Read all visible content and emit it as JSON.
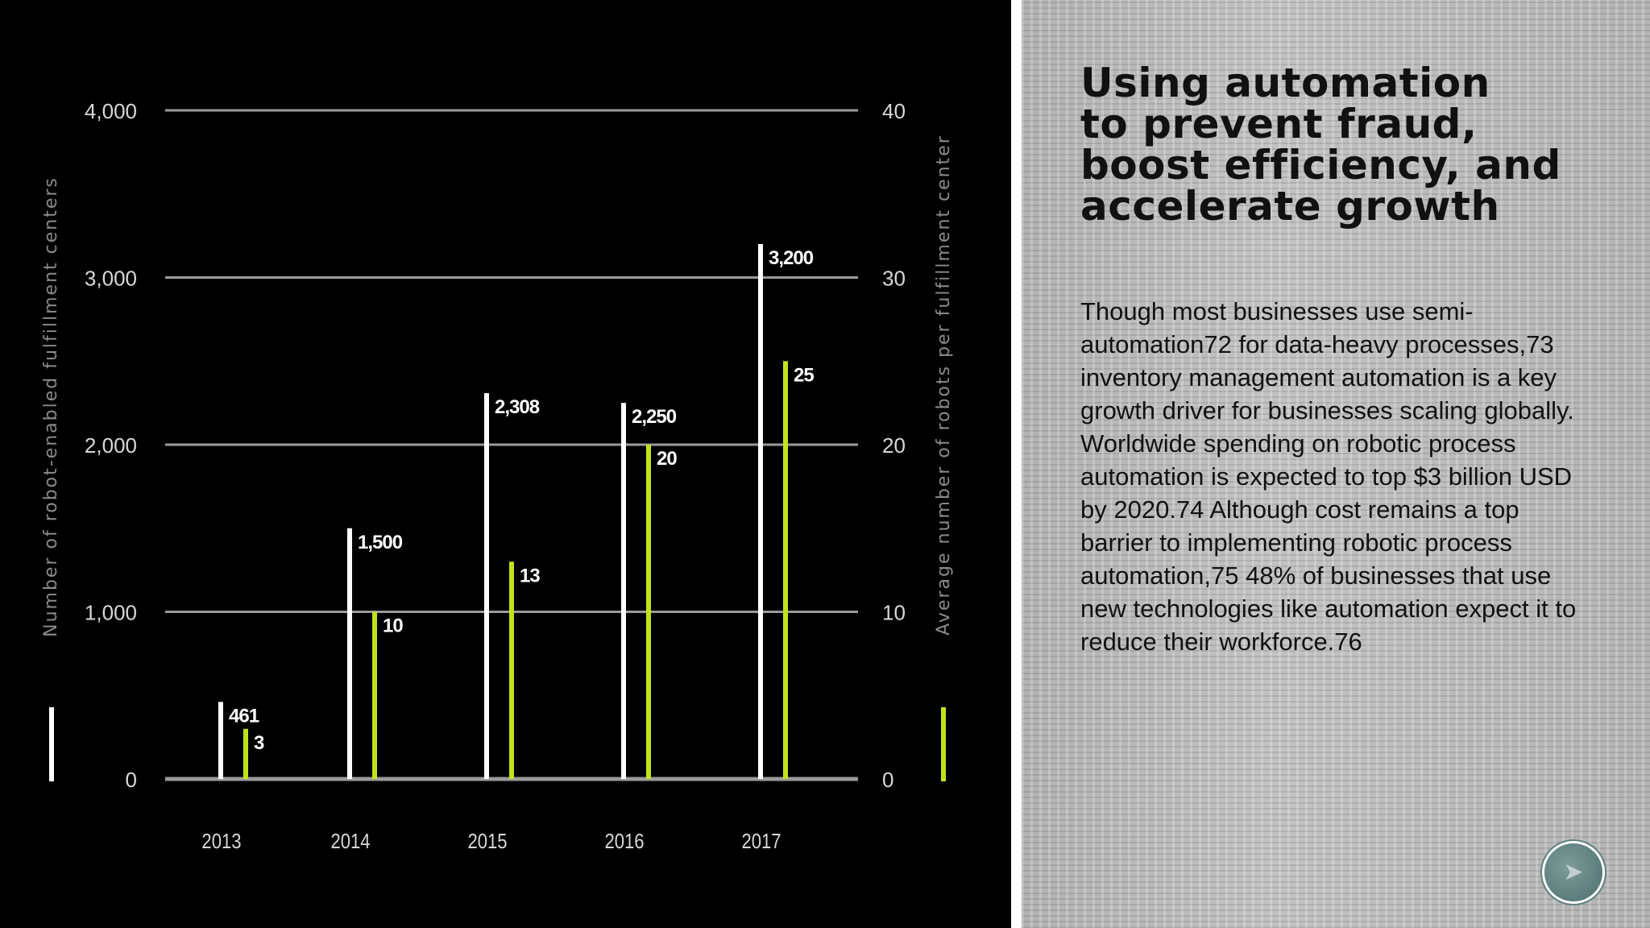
{
  "slide": {
    "title": "Using automation\n to prevent fraud,\nboost efficiency, and\naccelerate growth",
    "body": "Though most businesses use semi-automation72 for data-heavy processes,73 inventory management automation is a key growth driver for businesses scaling globally. Worldwide spending on robotic process automation is expected to top $3 billion USD by 2020.74 Although cost remains a top barrier to implementing robotic process automation,75 48% of businesses that use new technologies like automation expect it to reduce their workforce.76",
    "next_icon": "forward-arrow-icon"
  },
  "colors": {
    "background": "#000000",
    "series_centers": "#ffffff",
    "series_robots": "#c3e21b",
    "gridline": "#9a9a9a",
    "axis_text": "#d8d8d8",
    "axis_title": "#8a8a8a"
  },
  "chart_data": {
    "type": "bar",
    "categories": [
      "2013",
      "2014",
      "2015",
      "2016",
      "2017"
    ],
    "series": [
      {
        "values": [
          461,
          1500,
          2308,
          2250,
          3200
        ],
        "labels": [
          "461",
          "1,500",
          "2,308",
          "2,250",
          "3,200"
        ],
        "axis": "left"
      },
      {
        "values": [
          3,
          10,
          13,
          20,
          25
        ],
        "labels": [
          "3",
          "10",
          "13",
          "20",
          "25"
        ],
        "axis": "right"
      }
    ],
    "ylabel": "Number of robot-enabled fulfillment centers",
    "y2label": "Average number of robots per fulfillment center",
    "ylim": [
      0,
      4000
    ],
    "y2lim": [
      0,
      40
    ],
    "yticks": [
      "0",
      "1,000",
      "2,000",
      "3,000",
      "4,000"
    ],
    "y2ticks": [
      "0",
      "10",
      "20",
      "30",
      "40"
    ],
    "grid": true,
    "legend": "swatches-bottom-of-axis-titles"
  }
}
